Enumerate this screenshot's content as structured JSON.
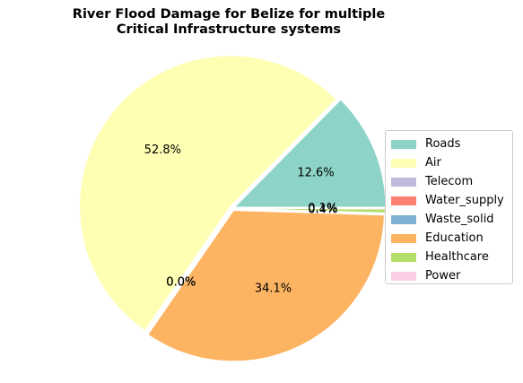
{
  "chart_data": {
    "type": "pie",
    "title": "River Flood Damage for Belize for multiple Critical Infrastructure systems",
    "title_lines": [
      "River Flood Damage for Belize for multiple",
      "Critical Infrastructure systems"
    ],
    "categories": [
      "Roads",
      "Air",
      "Telecom",
      "Water_supply",
      "Waste_solid",
      "Education",
      "Healthcare",
      "Power"
    ],
    "values": [
      12.6,
      52.8,
      0.0,
      0.0,
      0.0,
      34.1,
      0.4,
      0.1
    ],
    "labels": [
      "12.6%",
      "52.8%",
      "0.0%",
      "0.0%",
      "0.0%",
      "34.1%",
      "0.4%",
      "0.1%"
    ],
    "colors": [
      "#8dd3c7",
      "#ffffb3",
      "#bebada",
      "#fb8072",
      "#80b1d3",
      "#fdb462",
      "#b3de69",
      "#fccde5"
    ],
    "legend_position": "center right",
    "start_angle_deg": 0,
    "direction": "counterclockwise"
  }
}
